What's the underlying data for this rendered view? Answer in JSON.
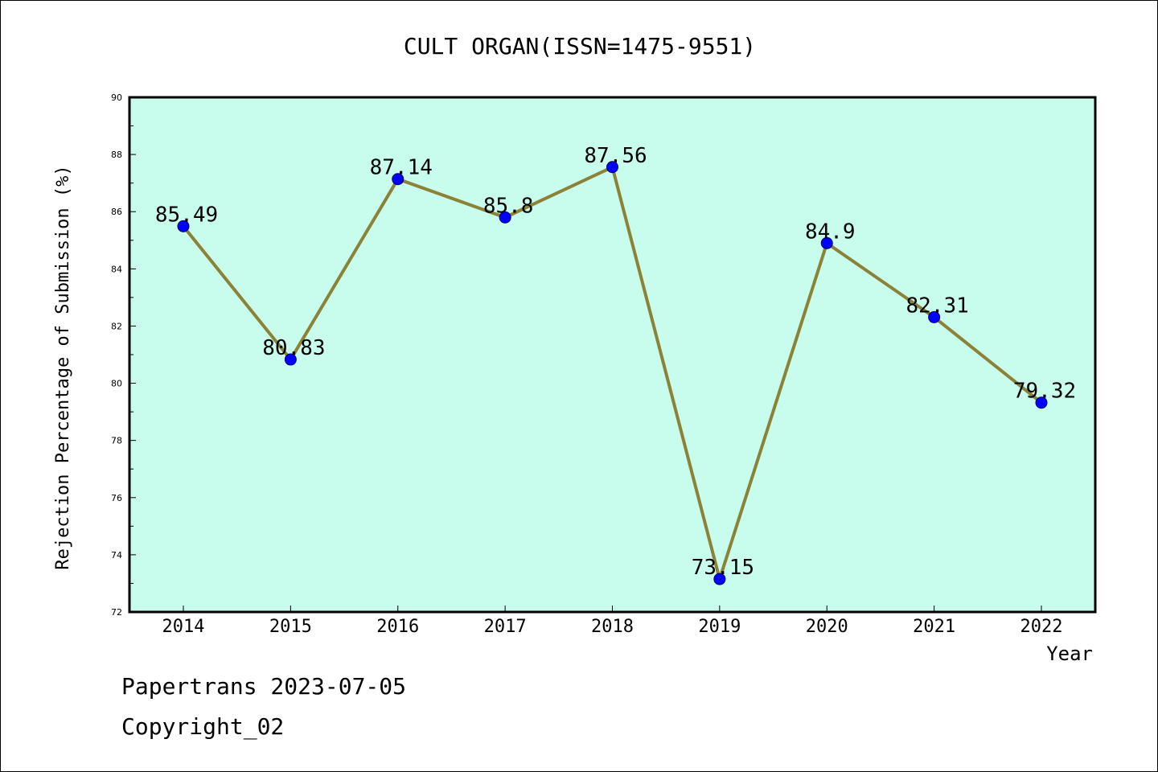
{
  "chart_data": {
    "type": "line",
    "title": "CULT ORGAN(ISSN=1475-9551)",
    "xlabel": "Year",
    "ylabel": "Rejection Percentage of Submission (%)",
    "categories": [
      "2014",
      "2015",
      "2016",
      "2017",
      "2018",
      "2019",
      "2020",
      "2021",
      "2022"
    ],
    "series": [
      {
        "values": [
          85.49,
          80.83,
          87.14,
          85.8,
          87.56,
          73.15,
          84.9,
          82.31,
          79.32
        ],
        "labels": [
          "85.49",
          "80.83",
          "87.14",
          "85.8",
          "87.56",
          "73.15",
          "84.9",
          "82.31",
          "79.32"
        ]
      }
    ],
    "ylim": [
      72,
      90
    ],
    "yticks": [
      "72",
      "74",
      "76",
      "78",
      "80",
      "82",
      "84",
      "86",
      "88",
      "90"
    ],
    "grid": false,
    "colors": {
      "plot_background": "#c8fcec",
      "line": "#8b8237",
      "marker": "#0000ff"
    }
  },
  "footer": {
    "line1": "Papertrans 2023-07-05",
    "line2": "Copyright_02"
  }
}
